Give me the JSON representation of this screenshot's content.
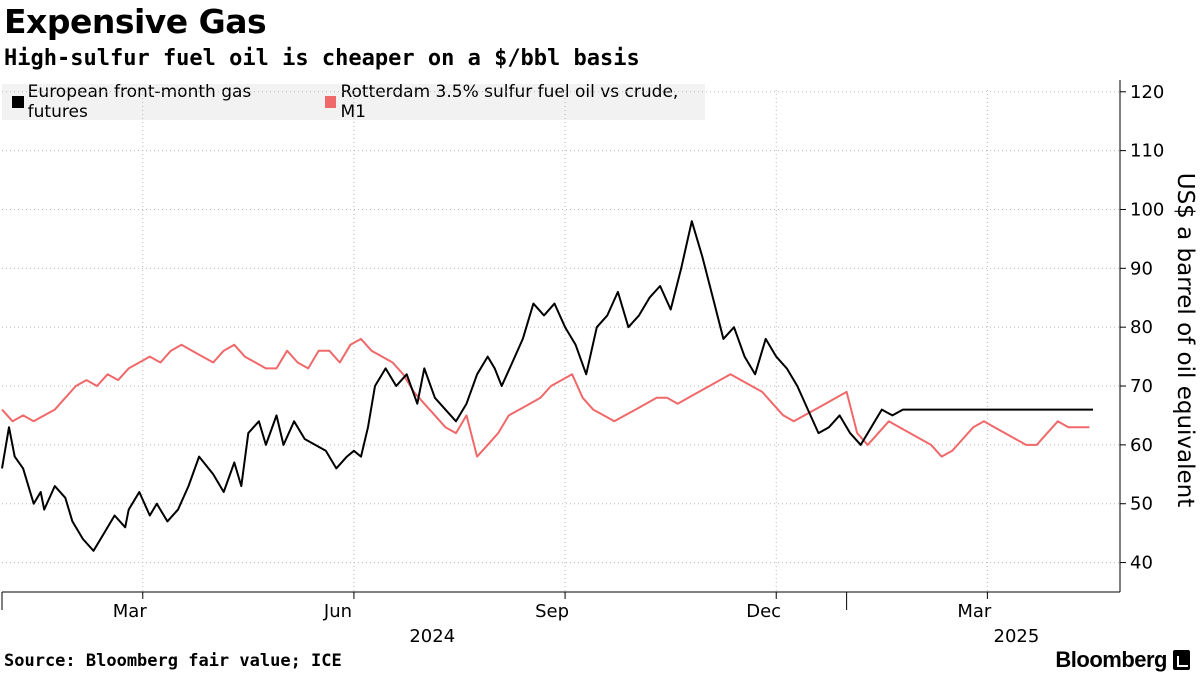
{
  "header": {
    "title": "Expensive Gas",
    "subtitle": "High-sulfur fuel oil is cheaper on a $/bbl basis"
  },
  "footer": {
    "source": "Source: Bloomberg fair value; ICE",
    "brand": "Bloomberg"
  },
  "colors": {
    "gas": "#000000",
    "fuel_oil": "#f0696a",
    "grid": "#b8b8b8",
    "legend_bg": "#f2f2f2"
  },
  "chart_data": {
    "type": "line",
    "title": "Expensive Gas",
    "subtitle": "High-sulfur fuel oil is cheaper on a $/bbl basis",
    "ylabel": "US$ a barrel of oil equivalent",
    "xlabel": "",
    "ylim": [
      35,
      122
    ],
    "yticks": [
      40,
      50,
      60,
      70,
      80,
      90,
      100,
      110,
      120
    ],
    "xlim": [
      0,
      15.6
    ],
    "x_unit": "months since 2024-01-01",
    "x_ticks": [
      {
        "label": "Mar",
        "x": 2.0
      },
      {
        "label": "Jun",
        "x": 5.0
      },
      {
        "label": "Sep",
        "x": 8.0
      },
      {
        "label": "Dec",
        "x": 11.0
      },
      {
        "label": "Mar",
        "x": 14.0
      }
    ],
    "year_labels": [
      {
        "label": "2024",
        "x": 6.1
      },
      {
        "label": "2025",
        "x": 14.4
      }
    ],
    "year_boundaries": [
      0.0,
      12.0
    ],
    "legend": [
      "European front-month gas futures",
      "Rotterdam 3.5% sulfur fuel oil vs crude, M1"
    ],
    "series": [
      {
        "name": "European front-month gas futures",
        "color": "#000000",
        "x": [
          0.0,
          0.1,
          0.18,
          0.3,
          0.45,
          0.55,
          0.6,
          0.75,
          0.9,
          1.0,
          1.15,
          1.3,
          1.45,
          1.6,
          1.75,
          1.8,
          1.95,
          2.1,
          2.2,
          2.35,
          2.5,
          2.65,
          2.8,
          3.0,
          3.15,
          3.3,
          3.4,
          3.5,
          3.65,
          3.75,
          3.9,
          4.0,
          4.15,
          4.3,
          4.45,
          4.6,
          4.75,
          4.9,
          5.0,
          5.1,
          5.2,
          5.3,
          5.45,
          5.6,
          5.75,
          5.9,
          6.0,
          6.15,
          6.3,
          6.45,
          6.6,
          6.75,
          6.9,
          7.0,
          7.1,
          7.25,
          7.4,
          7.55,
          7.7,
          7.85,
          8.0,
          8.15,
          8.3,
          8.45,
          8.6,
          8.75,
          8.9,
          9.05,
          9.2,
          9.35,
          9.5,
          9.65,
          9.8,
          9.95,
          10.1,
          10.25,
          10.4,
          10.55,
          10.7,
          10.85,
          11.0,
          11.15,
          11.3,
          11.45,
          11.6,
          11.75,
          11.9,
          12.05,
          12.2,
          12.35,
          12.5,
          12.65,
          12.8,
          12.95,
          13.1,
          13.25,
          13.4,
          13.55,
          13.7,
          13.85,
          14.0,
          14.15,
          14.3,
          14.45,
          14.6,
          14.75,
          14.9,
          15.05,
          15.2,
          15.35,
          15.5
        ],
        "values": [
          56,
          63,
          58,
          56,
          50,
          52,
          49,
          53,
          51,
          47,
          44,
          42,
          45,
          48,
          46,
          49,
          52,
          48,
          50,
          47,
          49,
          53,
          58,
          55,
          52,
          57,
          53,
          62,
          64,
          60,
          65,
          60,
          64,
          61,
          60,
          59,
          56,
          58,
          59,
          58,
          63,
          70,
          73,
          70,
          72,
          67,
          73,
          68,
          66,
          64,
          67,
          72,
          75,
          73,
          70,
          74,
          78,
          84,
          82,
          84,
          80,
          77,
          72,
          80,
          82,
          86,
          80,
          82,
          85,
          87,
          83,
          90,
          98,
          92,
          85,
          78,
          80,
          75,
          72,
          78,
          75,
          73,
          70,
          66,
          62,
          63,
          65,
          62,
          60,
          63,
          66,
          65,
          66,
          66,
          66,
          66,
          66,
          66,
          66,
          66,
          66,
          66,
          66,
          66,
          66,
          66,
          66,
          66,
          66,
          66,
          66
        ],
        "chart_note": "values sampled along the visible trace"
      },
      {
        "name": "Rotterdam 3.5% sulfur fuel oil vs crude, M1",
        "color": "#f0696a",
        "x": [
          0.0,
          0.15,
          0.3,
          0.45,
          0.6,
          0.75,
          0.9,
          1.05,
          1.2,
          1.35,
          1.5,
          1.65,
          1.8,
          1.95,
          2.1,
          2.25,
          2.4,
          2.55,
          2.7,
          2.85,
          3.0,
          3.15,
          3.3,
          3.45,
          3.6,
          3.75,
          3.9,
          4.05,
          4.2,
          4.35,
          4.5,
          4.65,
          4.8,
          4.95,
          5.1,
          5.25,
          5.4,
          5.55,
          5.7,
          5.85,
          6.0,
          6.15,
          6.3,
          6.45,
          6.6,
          6.75,
          6.9,
          7.05,
          7.2,
          7.35,
          7.5,
          7.65,
          7.8,
          7.95,
          8.1,
          8.25,
          8.4,
          8.55,
          8.7,
          8.85,
          9.0,
          9.15,
          9.3,
          9.45,
          9.6,
          9.75,
          9.9,
          10.05,
          10.2,
          10.35,
          10.5,
          10.65,
          10.8,
          10.95,
          11.1,
          11.25,
          11.4,
          11.55,
          11.7,
          11.85,
          12.0,
          12.15,
          12.3,
          12.45,
          12.6,
          12.75,
          12.9,
          13.05,
          13.2,
          13.35,
          13.5,
          13.65,
          13.8,
          13.95,
          14.1,
          14.25,
          14.4,
          14.55,
          14.7,
          14.85,
          15.0,
          15.15,
          15.3,
          15.45
        ],
        "values": [
          66,
          64,
          65,
          64,
          65,
          66,
          68,
          70,
          71,
          70,
          72,
          71,
          73,
          74,
          75,
          74,
          76,
          77,
          76,
          75,
          74,
          76,
          77,
          75,
          74,
          73,
          73,
          76,
          74,
          73,
          76,
          76,
          74,
          77,
          78,
          76,
          75,
          74,
          72,
          69,
          67,
          65,
          63,
          62,
          65,
          58,
          60,
          62,
          65,
          66,
          67,
          68,
          70,
          71,
          72,
          68,
          66,
          65,
          64,
          65,
          66,
          67,
          68,
          68,
          67,
          68,
          69,
          70,
          71,
          72,
          71,
          70,
          69,
          67,
          65,
          64,
          65,
          66,
          67,
          68,
          69,
          62,
          60,
          62,
          64,
          63,
          62,
          61,
          60,
          58,
          59,
          61,
          63,
          64,
          63,
          62,
          61,
          60,
          60,
          62,
          64,
          63,
          63,
          63
        ],
        "chart_note": "values sampled along the visible trace"
      }
    ]
  }
}
